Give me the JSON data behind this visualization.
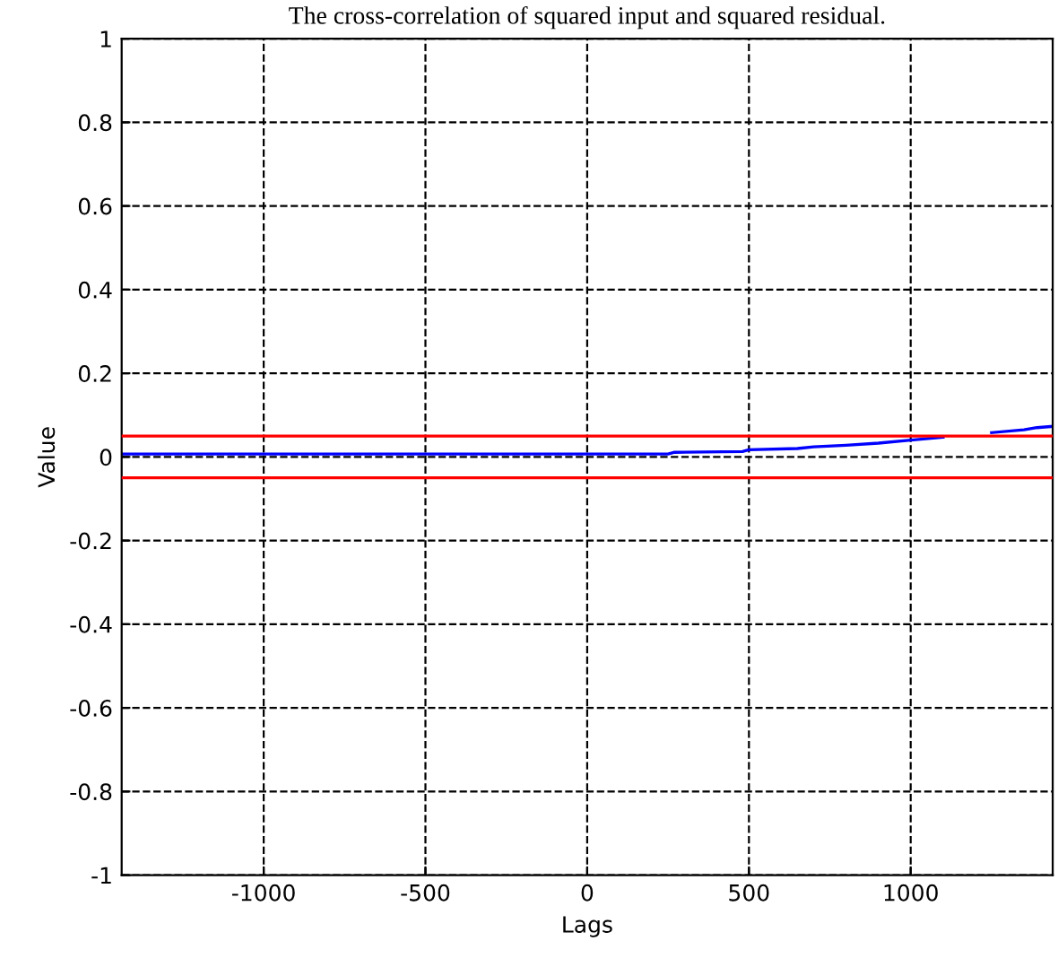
{
  "chart_data": {
    "type": "line",
    "title": "The cross-correlation of squared input and squared residual.",
    "xlabel": "Lags",
    "ylabel": "Value",
    "series": [
      {
        "color": "#0000ff",
        "x": [
          -1439,
          -1000,
          -500,
          0,
          250,
          270,
          480,
          500,
          650,
          700,
          800,
          900,
          1000,
          1100,
          1150,
          1250,
          1350,
          1390,
          1439
        ],
        "values": [
          0.007,
          0.007,
          0.007,
          0.007,
          0.007,
          0.011,
          0.013,
          0.017,
          0.02,
          0.024,
          0.028,
          0.033,
          0.04,
          0.047,
          null,
          0.058,
          0.065,
          0.07,
          0.073
        ]
      }
    ],
    "ref_lines": [
      {
        "axis": "y",
        "value": 0.05,
        "color": "#ff0000"
      },
      {
        "axis": "y",
        "value": -0.05,
        "color": "#ff0000"
      }
    ],
    "xlim": [
      -1439,
      1439
    ],
    "ylim": [
      -1,
      1
    ],
    "xticks": [
      -1000,
      -500,
      0,
      500,
      1000
    ],
    "yticks": [
      -1,
      -0.8,
      -0.6,
      -0.4,
      -0.2,
      0,
      0.2,
      0.4,
      0.6,
      0.8,
      1
    ],
    "grid": true,
    "line_style": "solid",
    "marker": "none",
    "legend": false
  }
}
